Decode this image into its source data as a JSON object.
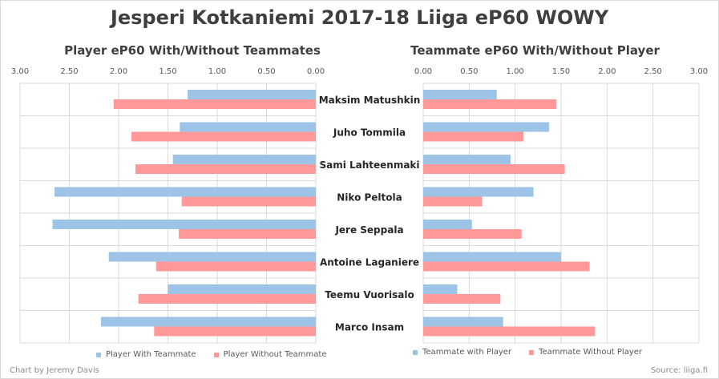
{
  "title": "Jesperi Kotkaniemi 2017-18 Liiga eP60 WOWY",
  "left_subtitle": "Player eP60 With/Without Teammates",
  "right_subtitle": "Teammate eP60 With/Without Player",
  "credit": "Chart by Jeremy Davis",
  "source": "Source: liiga.fi",
  "colors": {
    "with": "#9dc3e6",
    "without": "#ff9999"
  },
  "chart_data": [
    {
      "type": "bar",
      "orientation": "horizontal-reversed",
      "title": "Player eP60 With/Without Teammates",
      "categories": [
        "Maksim Matushkin",
        "Juho Tommila",
        "Sami Lahteenmaki",
        "Niko Peltola",
        "Jere Seppala",
        "Antoine Laganiere",
        "Teemu Vuorisalo",
        "Marco Insam"
      ],
      "ticks": [
        "3.00",
        "2.50",
        "2.00",
        "1.50",
        "1.00",
        "0.50",
        "0.00"
      ],
      "xlim": [
        0,
        3
      ],
      "grid": true,
      "legend": "bottom",
      "series": [
        {
          "name": "Player With Teammate",
          "values": [
            1.3,
            1.38,
            1.45,
            2.65,
            2.67,
            2.1,
            1.5,
            2.18
          ]
        },
        {
          "name": "Player Without Teammate",
          "values": [
            2.05,
            1.87,
            1.83,
            1.36,
            1.39,
            1.62,
            1.8,
            1.64
          ]
        }
      ]
    },
    {
      "type": "bar",
      "orientation": "horizontal",
      "title": "Teammate eP60 With/Without Player",
      "categories": [
        "Maksim Matushkin",
        "Juho Tommila",
        "Sami Lahteenmaki",
        "Niko Peltola",
        "Jere Seppala",
        "Antoine Laganiere",
        "Teemu Vuorisalo",
        "Marco Insam"
      ],
      "ticks": [
        "0.00",
        "0.50",
        "1.00",
        "1.50",
        "2.00",
        "2.50",
        "3.00"
      ],
      "xlim": [
        0,
        3
      ],
      "grid": true,
      "legend": "bottom",
      "series": [
        {
          "name": "Teammate with Player",
          "values": [
            0.8,
            1.37,
            0.95,
            1.2,
            0.53,
            1.5,
            0.37,
            0.87
          ]
        },
        {
          "name": "Teammate Without Player",
          "values": [
            1.45,
            1.09,
            1.54,
            0.64,
            1.07,
            1.81,
            0.84,
            1.87
          ]
        }
      ]
    }
  ]
}
